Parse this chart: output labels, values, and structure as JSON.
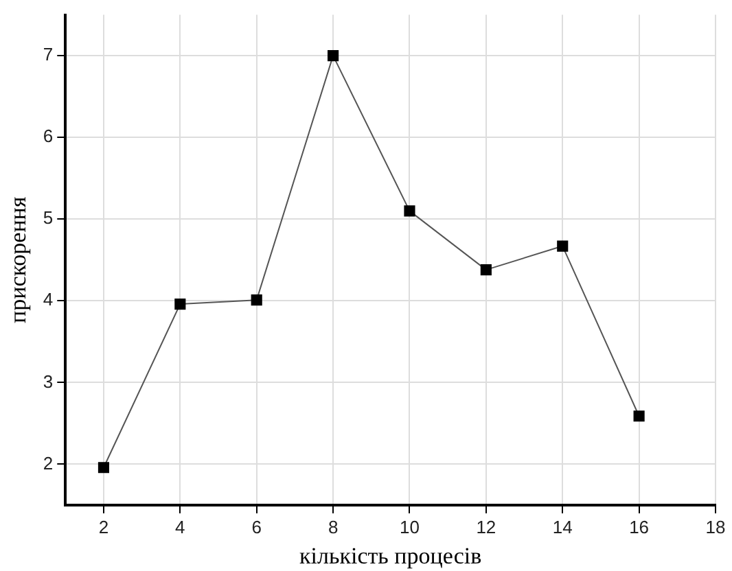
{
  "chart_data": {
    "type": "line",
    "xlabel": "кількість процесів",
    "ylabel": "прискорення",
    "x": [
      2,
      4,
      6,
      8,
      10,
      12,
      14,
      16
    ],
    "series": [
      {
        "color": "#000000",
        "values": [
          1.96,
          3.96,
          4.01,
          7.0,
          5.1,
          4.38,
          4.67,
          2.59
        ]
      }
    ],
    "xlim": [
      1,
      18
    ],
    "xticks": [
      2,
      4,
      6,
      8,
      10,
      12,
      14,
      16,
      18
    ],
    "ylim": [
      1.5,
      7.5
    ],
    "yticks": [
      2,
      3,
      4,
      5,
      6,
      7
    ],
    "grid": true,
    "legend": false,
    "marker": "square",
    "line_style": "solid"
  }
}
